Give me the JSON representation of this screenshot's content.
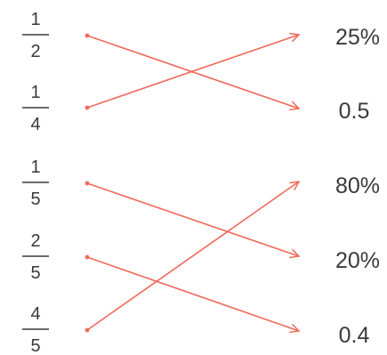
{
  "fractions": [
    {
      "num": "1",
      "den": "2"
    },
    {
      "num": "1",
      "den": "4"
    },
    {
      "num": "1",
      "den": "5"
    },
    {
      "num": "2",
      "den": "5"
    },
    {
      "num": "4",
      "den": "5"
    }
  ],
  "values": [
    "25%",
    "0.5",
    "80%",
    "20%",
    "0.4"
  ],
  "matches": [
    {
      "from": 0,
      "to": 1
    },
    {
      "from": 1,
      "to": 0
    },
    {
      "from": 2,
      "to": 3
    },
    {
      "from": 3,
      "to": 4
    },
    {
      "from": 4,
      "to": 2
    }
  ],
  "colors": {
    "line": "#f06a5a",
    "text": "#3a3a3a"
  }
}
